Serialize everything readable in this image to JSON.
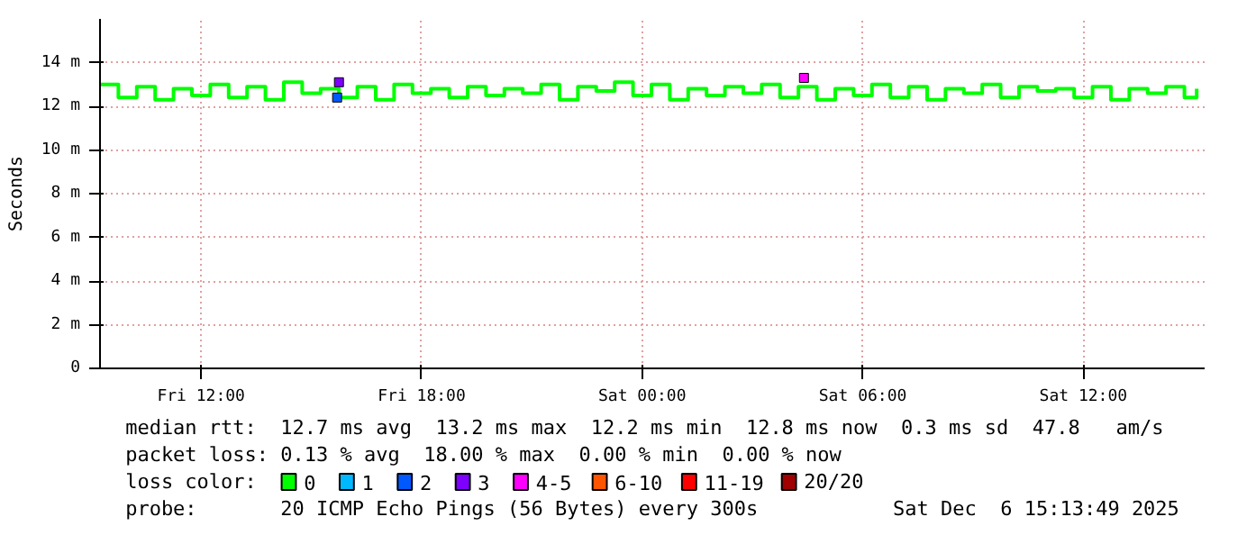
{
  "chart_data": {
    "type": "step",
    "ylabel": "Seconds",
    "legend_title": "loss color:",
    "annotations": [
      "median rtt:  12.7 ms avg  13.2 ms max  12.2 ms min  12.8 ms now  0.3 ms sd  47.8   am/s",
      "packet loss: 0.13 % avg  18.00 % max  0.00 % min  0.00 % now",
      "probe:       20 ICMP Echo Pings (56 Bytes) every 300s",
      "Sat Dec  6 15:13:49 2025"
    ],
    "x": [
      "2025-12-05T09:15",
      "2025-12-05T09:45",
      "2025-12-05T10:15",
      "2025-12-05T10:45",
      "2025-12-05T11:15",
      "2025-12-05T11:45",
      "2025-12-05T12:15",
      "2025-12-05T12:45",
      "2025-12-05T13:15",
      "2025-12-05T13:45",
      "2025-12-05T14:15",
      "2025-12-05T14:45",
      "2025-12-05T15:15",
      "2025-12-05T15:45",
      "2025-12-05T16:15",
      "2025-12-05T16:45",
      "2025-12-05T17:15",
      "2025-12-05T17:45",
      "2025-12-05T18:15",
      "2025-12-05T18:45",
      "2025-12-05T19:15",
      "2025-12-05T19:45",
      "2025-12-05T20:15",
      "2025-12-05T20:45",
      "2025-12-05T21:15",
      "2025-12-05T21:45",
      "2025-12-05T22:15",
      "2025-12-05T22:45",
      "2025-12-05T23:15",
      "2025-12-05T23:45",
      "2025-12-06T00:15",
      "2025-12-06T00:45",
      "2025-12-06T01:15",
      "2025-12-06T01:45",
      "2025-12-06T02:15",
      "2025-12-06T02:45",
      "2025-12-06T03:15",
      "2025-12-06T03:45",
      "2025-12-06T04:15",
      "2025-12-06T04:45",
      "2025-12-06T05:15",
      "2025-12-06T05:45",
      "2025-12-06T06:15",
      "2025-12-06T06:45",
      "2025-12-06T07:15",
      "2025-12-06T07:45",
      "2025-12-06T08:15",
      "2025-12-06T08:45",
      "2025-12-06T09:15",
      "2025-12-06T09:45",
      "2025-12-06T10:15",
      "2025-12-06T10:45",
      "2025-12-06T11:15",
      "2025-12-06T11:45",
      "2025-12-06T12:15",
      "2025-12-06T12:45",
      "2025-12-06T13:15",
      "2025-12-06T13:45",
      "2025-12-06T14:15",
      "2025-12-06T14:45",
      "2025-12-06T15:05"
    ],
    "xlim": [
      "2025-12-05T09:15",
      "2025-12-06T15:18"
    ],
    "xticks": [
      {
        "value": "2025-12-05T12:00",
        "label": "Fri 12:00"
      },
      {
        "value": "2025-12-05T18:00",
        "label": "Fri 18:00"
      },
      {
        "value": "2025-12-06T00:00",
        "label": "Sat 00:00"
      },
      {
        "value": "2025-12-06T06:00",
        "label": "Sat 06:00"
      },
      {
        "value": "2025-12-06T12:00",
        "label": "Sat 12:00"
      }
    ],
    "ylim": [
      0,
      16
    ],
    "yticks": [
      0,
      {
        "value": 2,
        "label": "2 m"
      },
      {
        "value": 4,
        "label": "4 m"
      },
      {
        "value": 6,
        "label": "6 m"
      },
      {
        "value": 8,
        "label": "8 m"
      },
      {
        "value": 10,
        "label": "10 m"
      },
      {
        "value": 12,
        "label": "12 m"
      },
      {
        "value": 14,
        "label": "14 m"
      }
    ],
    "grid": true,
    "legend": "bottom",
    "series": [
      {
        "name": "0",
        "color": "#00ff00",
        "values": [
          13.0,
          12.4,
          12.9,
          12.3,
          12.8,
          12.5,
          13.0,
          12.4,
          12.9,
          12.3,
          13.1,
          12.6,
          12.8,
          12.4,
          12.9,
          12.3,
          13.0,
          12.6,
          12.8,
          12.4,
          12.9,
          12.5,
          12.8,
          12.6,
          13.0,
          12.3,
          12.9,
          12.7,
          13.1,
          12.5,
          13.0,
          12.3,
          12.8,
          12.5,
          12.9,
          12.6,
          13.0,
          12.4,
          12.9,
          12.3,
          12.8,
          12.5,
          13.0,
          12.4,
          12.9,
          12.3,
          12.8,
          12.6,
          13.0,
          12.4,
          12.9,
          12.7,
          12.8,
          12.4,
          12.9,
          12.3,
          12.8,
          12.6,
          12.9,
          12.4,
          12.8
        ]
      },
      {
        "name": "1",
        "color": "#00b8ff",
        "type": "scatter",
        "x": [
          null
        ],
        "values": [
          null
        ]
      },
      {
        "name": "2",
        "color": "#0059ff",
        "type": "scatter",
        "x": [
          "2025-12-05T15:42"
        ],
        "values": [
          12.4
        ]
      },
      {
        "name": "3",
        "color": "#7e00ff",
        "type": "scatter",
        "x": [
          "2025-12-05T15:45"
        ],
        "values": [
          13.1
        ]
      },
      {
        "name": "4-5",
        "color": "#ff00ff",
        "type": "scatter",
        "x": [
          "2025-12-06T04:24"
        ],
        "values": [
          13.3
        ]
      },
      {
        "name": "6-10",
        "color": "#ff5500",
        "type": "scatter",
        "x": [
          null
        ],
        "values": [
          null
        ]
      },
      {
        "name": "11-19",
        "color": "#ff0000",
        "type": "scatter",
        "x": [
          null
        ],
        "values": [
          null
        ]
      },
      {
        "name": "20/20",
        "color": "#a10000",
        "type": "scatter",
        "x": [
          null
        ],
        "values": [
          null
        ]
      }
    ]
  }
}
